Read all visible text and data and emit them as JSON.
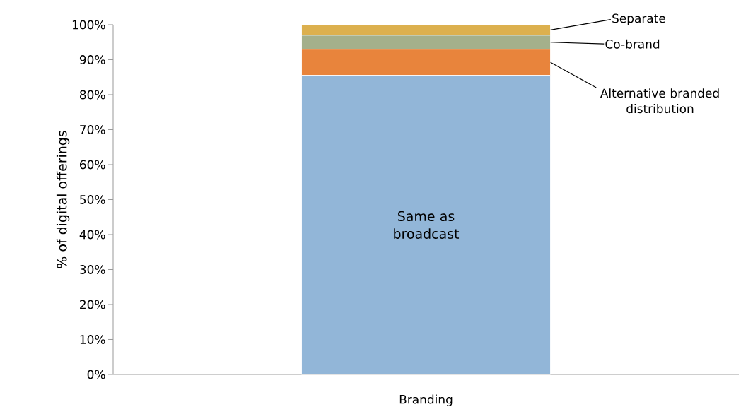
{
  "chart_data": {
    "type": "bar",
    "stacked": true,
    "ylabel": "% of digital offerings",
    "categories": [
      "Branding"
    ],
    "series": [
      {
        "name": "Same as broadcast",
        "color": "#92b6d8",
        "values": [
          85.5
        ]
      },
      {
        "name": "Alternative branded distribution",
        "color": "#e8843c",
        "values": [
          7.5
        ]
      },
      {
        "name": "Co-brand",
        "color": "#a4b08b",
        "values": [
          4
        ]
      },
      {
        "name": "Separate",
        "color": "#dcb04e",
        "values": [
          3
        ]
      }
    ],
    "ylim": [
      0,
      100
    ],
    "yticks": [
      {
        "value": 0,
        "label": "0%"
      },
      {
        "value": 10,
        "label": "10%"
      },
      {
        "value": 20,
        "label": "20%"
      },
      {
        "value": 30,
        "label": "30%"
      },
      {
        "value": 40,
        "label": "40%"
      },
      {
        "value": 50,
        "label": "50%"
      },
      {
        "value": 60,
        "label": "60%"
      },
      {
        "value": 70,
        "label": "70%"
      },
      {
        "value": 80,
        "label": "80%"
      },
      {
        "value": 90,
        "label": "90%"
      },
      {
        "value": 100,
        "label": "100%"
      }
    ]
  }
}
